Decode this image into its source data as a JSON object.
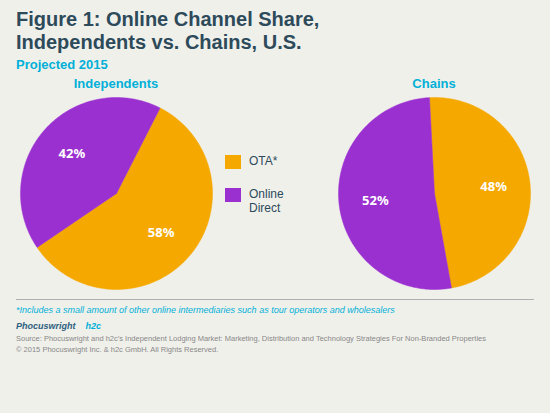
{
  "chart_data": {
    "type": "pie",
    "title": "Figure 1: Online Channel Share,\nIndependents vs. Chains, U.S.",
    "subtitle": "Projected 2015",
    "categories": [
      "OTA*",
      "Online\nDirect"
    ],
    "colors": [
      "#f5a800",
      "#9b30d0"
    ],
    "series": [
      {
        "name": "Independents",
        "values": [
          58,
          42
        ],
        "value_labels": [
          "58%",
          "42%"
        ]
      },
      {
        "name": "Chains",
        "values": [
          48,
          52
        ],
        "value_labels": [
          "48%",
          "52%"
        ]
      }
    ],
    "data_labels": true,
    "legend": "center",
    "annotations": [
      "*Includes a small amount of other online intermediaries such as tour operators and wholesalers",
      "Phocuswright",
      "h2c",
      "Source: Phocuswright and h2c’s Independent Lodging Market: Marketing, Distribution and Technology Strategies For Non-Branded Properties",
      "© 2015 Phocuswright Inc. & h2c GmbH. All Rights Reserved."
    ]
  }
}
